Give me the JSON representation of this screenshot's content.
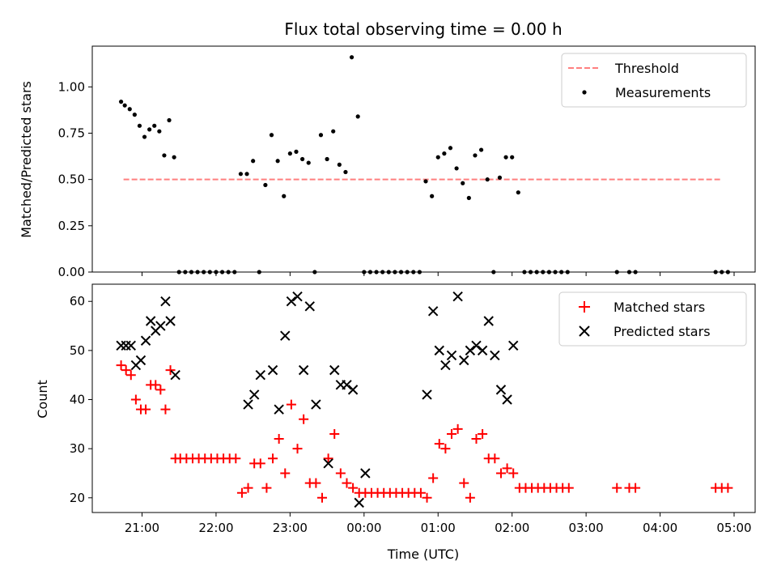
{
  "chart_data": [
    {
      "type": "scatter",
      "title": "Flux total observing time = 0.00 h",
      "ylabel": "Matched/Predicted stars",
      "xlabel": "",
      "ylim": [
        0,
        1.22
      ],
      "yticks": [
        0.0,
        0.25,
        0.5,
        0.75,
        1.0
      ],
      "ytick_labels": [
        "0.00",
        "0.25",
        "0.50",
        "0.75",
        "1.00"
      ],
      "legend_position": "top-right",
      "threshold": {
        "name": "Threshold",
        "value": 0.5,
        "x_range": [
          "20:45",
          "04:50"
        ],
        "color": "#ff7f7f",
        "style": "dashed"
      },
      "series": [
        {
          "name": "Measurements",
          "color": "#000000",
          "marker": "dot",
          "x": [
            "20:43",
            "20:46",
            "20:50",
            "20:54",
            "20:58",
            "21:02",
            "21:06",
            "21:10",
            "21:14",
            "21:18",
            "21:22",
            "21:26",
            "21:30",
            "21:35",
            "21:40",
            "21:45",
            "21:50",
            "21:55",
            "22:00",
            "22:05",
            "22:10",
            "22:15",
            "22:20",
            "22:25",
            "22:30",
            "22:35",
            "22:40",
            "22:45",
            "22:50",
            "22:55",
            "23:00",
            "23:05",
            "23:10",
            "23:15",
            "23:20",
            "23:25",
            "23:30",
            "23:35",
            "23:40",
            "23:45",
            "23:50",
            "23:55",
            "00:00",
            "00:05",
            "00:10",
            "00:15",
            "00:20",
            "00:25",
            "00:30",
            "00:35",
            "00:40",
            "00:45",
            "00:50",
            "00:55",
            "01:00",
            "01:05",
            "01:10",
            "01:15",
            "01:20",
            "01:25",
            "01:30",
            "01:35",
            "01:40",
            "01:45",
            "01:50",
            "01:55",
            "02:00",
            "02:05",
            "02:10",
            "02:15",
            "02:20",
            "02:25",
            "02:30",
            "02:35",
            "02:40",
            "02:45",
            "03:25",
            "03:35",
            "03:40",
            "04:45",
            "04:50",
            "04:55"
          ],
          "y": [
            0.92,
            0.9,
            0.88,
            0.85,
            0.79,
            0.73,
            0.77,
            0.79,
            0.76,
            0.63,
            0.82,
            0.62,
            0.0,
            0.0,
            0.0,
            0.0,
            0.0,
            0.0,
            0.0,
            0.0,
            0.0,
            0.0,
            0.53,
            0.53,
            0.6,
            0.0,
            0.47,
            0.74,
            0.6,
            0.41,
            0.64,
            0.65,
            0.61,
            0.59,
            0.0,
            0.74,
            0.61,
            0.76,
            0.58,
            0.54,
            1.16,
            0.84,
            0.0,
            0.0,
            0.0,
            0.0,
            0.0,
            0.0,
            0.0,
            0.0,
            0.0,
            0.0,
            0.49,
            0.41,
            0.62,
            0.64,
            0.67,
            0.56,
            0.48,
            0.4,
            0.63,
            0.66,
            0.5,
            0.0,
            0.51,
            0.62,
            0.62,
            0.43,
            0.0,
            0.0,
            0.0,
            0.0,
            0.0,
            0.0,
            0.0,
            0.0,
            0.0,
            0.0,
            0.0,
            0.0,
            0.0,
            0.0
          ]
        }
      ]
    },
    {
      "type": "scatter",
      "title": "",
      "ylabel": "Count",
      "xlabel": "Time (UTC)",
      "ylim": [
        17,
        63.5
      ],
      "yticks": [
        20,
        30,
        40,
        50,
        60
      ],
      "ytick_labels": [
        "20",
        "30",
        "40",
        "50",
        "60"
      ],
      "xticks": [
        "21:00",
        "22:00",
        "23:00",
        "00:00",
        "01:00",
        "02:00",
        "03:00",
        "04:00",
        "05:00"
      ],
      "legend_position": "top-right",
      "series": [
        {
          "name": "Matched stars",
          "color": "#ff0000",
          "marker": "plus",
          "x": [
            "20:43",
            "20:47",
            "20:51",
            "20:55",
            "20:59",
            "21:03",
            "21:07",
            "21:11",
            "21:15",
            "21:19",
            "21:23",
            "21:27",
            "21:31",
            "21:36",
            "21:41",
            "21:46",
            "21:51",
            "21:56",
            "22:01",
            "22:06",
            "22:11",
            "22:16",
            "22:21",
            "22:26",
            "22:31",
            "22:36",
            "22:41",
            "22:46",
            "22:51",
            "22:56",
            "23:01",
            "23:06",
            "23:11",
            "23:16",
            "23:21",
            "23:26",
            "23:31",
            "23:36",
            "23:41",
            "23:46",
            "23:51",
            "23:56",
            "00:01",
            "00:06",
            "00:11",
            "00:16",
            "00:21",
            "00:26",
            "00:31",
            "00:36",
            "00:41",
            "00:46",
            "00:51",
            "00:56",
            "01:01",
            "01:06",
            "01:11",
            "01:16",
            "01:21",
            "01:26",
            "01:31",
            "01:36",
            "01:41",
            "01:46",
            "01:51",
            "01:56",
            "02:01",
            "02:06",
            "02:11",
            "02:16",
            "02:21",
            "02:26",
            "02:31",
            "02:36",
            "02:41",
            "02:46",
            "03:25",
            "03:35",
            "03:40",
            "04:45",
            "04:50",
            "04:55"
          ],
          "y": [
            47,
            46,
            45,
            40,
            38,
            38,
            43,
            43,
            42,
            38,
            46,
            28,
            28,
            28,
            28,
            28,
            28,
            28,
            28,
            28,
            28,
            28,
            21,
            22,
            27,
            27,
            22,
            28,
            32,
            25,
            39,
            30,
            36,
            23,
            23,
            20,
            28,
            33,
            25,
            23,
            22,
            21,
            21,
            21,
            21,
            21,
            21,
            21,
            21,
            21,
            21,
            21,
            20,
            24,
            31,
            30,
            33,
            34,
            23,
            20,
            32,
            33,
            28,
            28,
            25,
            26,
            25,
            22,
            22,
            22,
            22,
            22,
            22,
            22,
            22,
            22,
            22,
            22,
            22,
            22,
            22,
            22
          ]
        },
        {
          "name": "Predicted stars",
          "color": "#000000",
          "marker": "x",
          "x": [
            "20:43",
            "20:47",
            "20:51",
            "20:55",
            "20:59",
            "21:03",
            "21:07",
            "21:11",
            "21:15",
            "21:19",
            "21:23",
            "21:27",
            "21:31",
            "22:26",
            "22:31",
            "22:36",
            "22:46",
            "22:51",
            "22:56",
            "23:01",
            "23:06",
            "23:11",
            "23:16",
            "23:21",
            "23:26",
            "23:31",
            "23:36",
            "23:41",
            "23:46",
            "23:51",
            "23:56",
            "00:01",
            "00:06",
            "00:51",
            "00:56",
            "01:01",
            "01:06",
            "01:11",
            "01:16",
            "01:21",
            "01:26",
            "01:31",
            "01:36",
            "01:41",
            "01:46",
            "01:51",
            "01:56",
            "02:01",
            "02:06"
          ],
          "y": [
            51,
            51,
            51,
            47,
            48,
            52,
            56,
            54,
            55,
            60,
            56,
            45,
            null,
            39,
            41,
            45,
            46,
            38,
            53,
            60,
            61,
            46,
            59,
            39,
            null,
            27,
            46,
            43,
            43,
            42,
            19,
            25,
            null,
            41,
            58,
            50,
            47,
            49,
            61,
            48,
            50,
            51,
            50,
            56,
            49,
            42,
            40,
            51,
            null
          ]
        }
      ]
    }
  ]
}
